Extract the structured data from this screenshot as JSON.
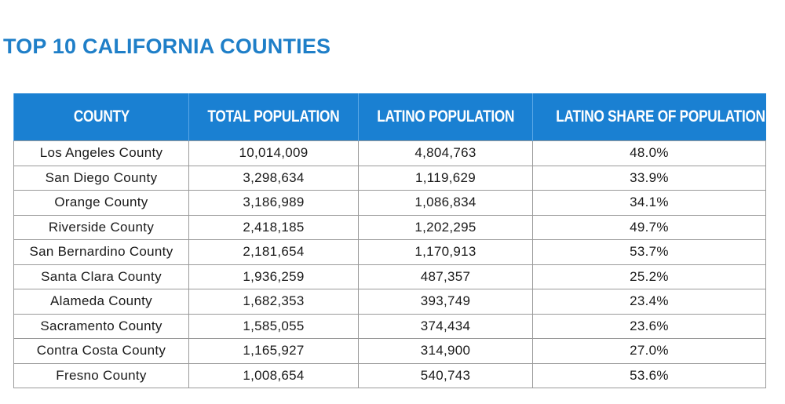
{
  "header": {
    "title": "TOP 10 CALIFORNIA COUNTIES"
  },
  "table": {
    "columns": [
      "COUNTY",
      "TOTAL POPULATION",
      "LATINO POPULATION",
      "LATINO SHARE OF POPULATION"
    ],
    "rows": [
      [
        "Los Angeles County",
        "10,014,009",
        "4,804,763",
        "48.0%"
      ],
      [
        "San Diego County",
        "3,298,634",
        "1,119,629",
        "33.9%"
      ],
      [
        "Orange County",
        "3,186,989",
        "1,086,834",
        "34.1%"
      ],
      [
        "Riverside County",
        "2,418,185",
        "1,202,295",
        "49.7%"
      ],
      [
        "San Bernardino County",
        "2,181,654",
        "1,170,913",
        "53.7%"
      ],
      [
        "Santa Clara County",
        "1,936,259",
        "487,357",
        "25.2%"
      ],
      [
        "Alameda County",
        "1,682,353",
        "393,749",
        "23.4%"
      ],
      [
        "Sacramento County",
        "1,585,055",
        "374,434",
        "23.6%"
      ],
      [
        "Contra Costa County",
        "1,165,927",
        "314,900",
        "27.0%"
      ],
      [
        "Fresno County",
        "1,008,654",
        "540,743",
        "53.6%"
      ]
    ]
  }
}
